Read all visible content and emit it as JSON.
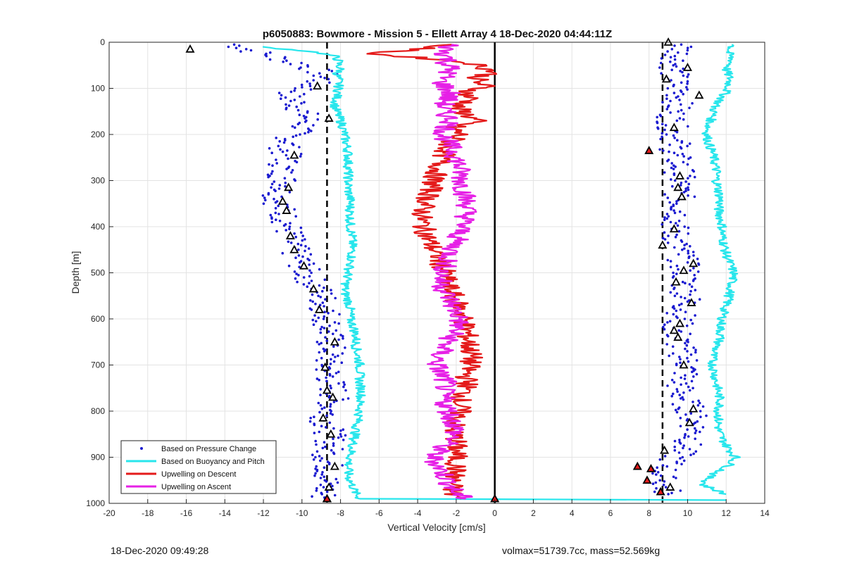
{
  "chart_data": {
    "type": "scatter",
    "title": "p6050883: Bowmore - Mission 5 - Ellett Array 4 18-Dec-2020 04:44:11Z",
    "xlabel": "Vertical Velocity [cm/s]",
    "ylabel": "Depth [m]",
    "xlim": [
      -20,
      14
    ],
    "ylim": [
      0,
      1000
    ],
    "y_reversed": true,
    "x_ticks": [
      -20,
      -18,
      -16,
      -14,
      -12,
      -10,
      -8,
      -6,
      -4,
      -2,
      0,
      2,
      4,
      6,
      8,
      10,
      12,
      14
    ],
    "y_ticks": [
      0,
      100,
      200,
      300,
      400,
      500,
      600,
      700,
      800,
      900,
      1000
    ],
    "grid": true,
    "legend_position": "bottom-left",
    "vertical_lines": [
      {
        "x": -8.7,
        "style": "dashed",
        "color": "#000000"
      },
      {
        "x": 8.7,
        "style": "dashed",
        "color": "#000000"
      },
      {
        "x": 0,
        "style": "solid",
        "color": "#000000"
      }
    ],
    "series": [
      {
        "name": "Based on Pressure Change",
        "kind": "points",
        "color": "#1a1ad0",
        "groups": [
          {
            "depth": [
              5,
              10,
              15,
              20,
              30,
              40,
              50,
              60,
              70,
              80,
              90,
              100,
              110,
              120,
              130,
              140,
              150,
              160,
              170,
              180,
              190,
              200,
              210,
              220,
              230,
              240,
              250,
              260,
              270,
              280,
              290,
              300,
              310,
              320,
              330,
              340,
              350,
              360,
              370,
              380,
              390,
              400,
              410,
              420,
              430,
              440,
              450,
              460,
              470,
              480,
              490,
              500,
              510,
              520,
              530,
              540,
              550,
              560,
              570,
              580,
              590,
              600,
              620,
              640,
              660,
              680,
              700,
              720,
              740,
              760,
              780,
              800,
              820,
              840,
              860,
              880,
              900,
              920,
              940,
              960,
              980,
              990
            ],
            "v": [
              -13.5,
              -13.2,
              -12.8,
              -12.5,
              -11.5,
              -10.8,
              -9.8,
              -9.3,
              -8.9,
              -8.9,
              -9.5,
              -9.8,
              -10.5,
              -10.8,
              -10.3,
              -10.2,
              -10.0,
              -9.8,
              -9.7,
              -9.8,
              -10.2,
              -10.5,
              -10.6,
              -10.8,
              -10.9,
              -10.9,
              -10.6,
              -10.9,
              -11.0,
              -11.1,
              -11.0,
              -10.9,
              -10.8,
              -11.0,
              -11.2,
              -11.3,
              -11.2,
              -11.1,
              -11.0,
              -10.9,
              -10.8,
              -10.7,
              -10.7,
              -10.6,
              -10.6,
              -10.5,
              -10.4,
              -10.3,
              -10.1,
              -10.0,
              -9.9,
              -9.8,
              -9.6,
              -9.5,
              -9.3,
              -9.1,
              -8.9,
              -8.9,
              -8.9,
              -8.8,
              -8.7,
              -8.7,
              -8.6,
              -8.6,
              -8.5,
              -8.6,
              -8.7,
              -8.6,
              -8.5,
              -8.3,
              -8.4,
              -8.6,
              -8.8,
              -8.6,
              -8.5,
              -8.6,
              -8.7,
              -8.6,
              -8.7,
              -8.8,
              -8.9,
              -8.8
            ]
          },
          {
            "depth": [
              5,
              20,
              40,
              60,
              80,
              100,
              120,
              140,
              160,
              180,
              200,
              220,
              240,
              260,
              280,
              300,
              320,
              340,
              360,
              380,
              400,
              420,
              440,
              460,
              480,
              500,
              520,
              540,
              560,
              580,
              600,
              620,
              640,
              660,
              680,
              700,
              720,
              740,
              760,
              780,
              800,
              820,
              840,
              860,
              880,
              900,
              920,
              940,
              960,
              980
            ],
            "v": [
              9.8,
              9.6,
              9.4,
              9.3,
              9.3,
              9.5,
              9.6,
              9.4,
              9.2,
              9.2,
              9.3,
              9.4,
              9.3,
              9.5,
              9.6,
              9.6,
              9.5,
              9.6,
              9.7,
              9.5,
              9.3,
              9.4,
              9.5,
              9.7,
              9.8,
              9.9,
              9.8,
              9.9,
              10.0,
              9.8,
              9.6,
              9.4,
              9.5,
              9.6,
              9.8,
              10.0,
              9.9,
              9.6,
              9.6,
              9.9,
              10.2,
              10.3,
              10.4,
              10.2,
              9.8,
              9.4,
              8.9,
              8.6,
              8.8,
              9.0
            ]
          }
        ]
      },
      {
        "name": "Based on Buoyancy and Pitch",
        "kind": "line",
        "color": "#28e6ec",
        "groups": [
          {
            "depth": [
              10,
              20,
              30,
              40,
              50,
              60,
              70,
              80,
              100,
              120,
              140,
              160,
              180,
              200,
              220,
              240,
              260,
              280,
              300,
              320,
              340,
              360,
              380,
              400,
              420,
              440,
              460,
              480,
              500,
              520,
              540,
              560,
              580,
              600,
              620,
              640,
              660,
              680,
              700,
              720,
              740,
              760,
              780,
              800,
              820,
              840,
              860,
              880,
              900,
              920,
              940,
              960,
              980,
              990
            ],
            "v": [
              -12.2,
              -9.5,
              -8.3,
              -8.1,
              -8.1,
              -8.0,
              -8.2,
              -8.1,
              -8.1,
              -8.2,
              -8.3,
              -8.1,
              -7.9,
              -7.8,
              -7.7,
              -7.6,
              -7.6,
              -7.6,
              -7.6,
              -7.6,
              -7.5,
              -7.5,
              -7.5,
              -7.5,
              -7.4,
              -7.4,
              -7.4,
              -7.5,
              -7.6,
              -7.7,
              -7.8,
              -7.6,
              -7.5,
              -7.5,
              -7.3,
              -7.2,
              -7.2,
              -7.1,
              -7.0,
              -7.0,
              -7.0,
              -6.9,
              -7.0,
              -7.0,
              -7.1,
              -7.2,
              -7.3,
              -7.4,
              -7.5,
              -7.6,
              -7.6,
              -7.4,
              -7.2,
              -7.0
            ]
          },
          {
            "depth": [
              990,
              991,
              993
            ],
            "v": [
              -7.0,
              0.0,
              12.0
            ]
          },
          {
            "depth": [
              5,
              20,
              40,
              60,
              80,
              100,
              120,
              140,
              160,
              180,
              200,
              220,
              240,
              260,
              280,
              300,
              320,
              340,
              360,
              380,
              400,
              420,
              440,
              460,
              480,
              500,
              520,
              540,
              560,
              580,
              600,
              620,
              640,
              660,
              680,
              700,
              720,
              740,
              760,
              780,
              800,
              820,
              840,
              860,
              880,
              900,
              920,
              940,
              960,
              980
            ],
            "v": [
              12.4,
              12.1,
              12.3,
              12.0,
              12.2,
              12.1,
              11.8,
              11.4,
              11.3,
              11.1,
              11.0,
              11.1,
              11.3,
              11.4,
              11.5,
              11.5,
              11.6,
              11.7,
              11.6,
              11.7,
              11.8,
              11.8,
              11.9,
              12.0,
              12.2,
              12.4,
              12.3,
              12.2,
              12.1,
              11.9,
              11.8,
              11.7,
              11.7,
              11.5,
              11.3,
              11.3,
              11.4,
              11.5,
              11.6,
              11.7,
              11.6,
              11.6,
              11.6,
              11.8,
              12.1,
              12.5,
              12.1,
              11.2,
              10.8,
              12.0
            ]
          }
        ]
      },
      {
        "name": "Upwelling on Descent",
        "kind": "line",
        "color": "#e41a1a",
        "groups": [
          {
            "depth": [
              5,
              15,
              25,
              35,
              45,
              55,
              65,
              75,
              85,
              95,
              110,
              125,
              140,
              155,
              170,
              185,
              200,
              220,
              240,
              260,
              280,
              300,
              320,
              340,
              360,
              380,
              400,
              420,
              440,
              460,
              480,
              500,
              520,
              540,
              560,
              580,
              600,
              620,
              640,
              660,
              680,
              700,
              720,
              740,
              760,
              780,
              800,
              820,
              840,
              860,
              880,
              900,
              920,
              940,
              960,
              980,
              990
            ],
            "v": [
              -2.5,
              -4.0,
              -6.5,
              -3.5,
              -1.2,
              -0.5,
              0.0,
              -0.8,
              -1.0,
              -0.5,
              -1.5,
              -1.2,
              -2.0,
              -1.5,
              -1.0,
              -2.2,
              -1.8,
              -2.4,
              -2.6,
              -2.8,
              -3.0,
              -3.2,
              -3.3,
              -3.5,
              -3.7,
              -3.8,
              -3.7,
              -3.5,
              -3.3,
              -3.0,
              -2.8,
              -2.6,
              -2.5,
              -2.3,
              -2.0,
              -1.8,
              -1.6,
              -1.5,
              -1.4,
              -1.3,
              -1.2,
              -1.3,
              -1.5,
              -1.4,
              -1.6,
              -1.8,
              -1.8,
              -2.0,
              -2.2,
              -2.0,
              -2.0,
              -2.0,
              -2.0,
              -2.1,
              -2.2,
              -2.2,
              -1.8
            ]
          }
        ]
      },
      {
        "name": "Upwelling on Ascent",
        "kind": "line",
        "color": "#e620e6",
        "groups": [
          {
            "depth": [
              5,
              15,
              25,
              35,
              45,
              55,
              65,
              75,
              85,
              95,
              110,
              125,
              140,
              155,
              170,
              185,
              200,
              220,
              240,
              260,
              280,
              300,
              320,
              340,
              360,
              380,
              400,
              420,
              440,
              460,
              480,
              500,
              520,
              540,
              560,
              580,
              600,
              620,
              640,
              660,
              680,
              700,
              720,
              740,
              760,
              780,
              800,
              820,
              840,
              860,
              880,
              900,
              920,
              940,
              960,
              980,
              990
            ],
            "v": [
              -2.3,
              -2.5,
              -2.6,
              -2.4,
              -2.5,
              -2.3,
              -2.4,
              -2.6,
              -2.8,
              -2.6,
              -2.3,
              -2.5,
              -2.7,
              -2.6,
              -2.2,
              -2.5,
              -2.7,
              -2.4,
              -2.1,
              -1.9,
              -1.8,
              -1.7,
              -1.6,
              -1.5,
              -1.4,
              -1.5,
              -1.7,
              -1.9,
              -2.1,
              -2.3,
              -2.5,
              -2.7,
              -2.8,
              -2.6,
              -2.3,
              -2.1,
              -1.8,
              -2.0,
              -2.3,
              -2.6,
              -2.9,
              -3.0,
              -2.8,
              -2.5,
              -2.7,
              -2.6,
              -2.4,
              -2.2,
              -2.0,
              -2.2,
              -2.8,
              -3.2,
              -2.9,
              -2.6,
              -2.3,
              -2.0,
              -1.5
            ]
          }
        ]
      }
    ],
    "triangle_markers_black": [
      {
        "v": -15.8,
        "depth": 15
      },
      {
        "v": -9.2,
        "depth": 95
      },
      {
        "v": -8.6,
        "depth": 165
      },
      {
        "v": -10.4,
        "depth": 245
      },
      {
        "v": -10.7,
        "depth": 315
      },
      {
        "v": -11.0,
        "depth": 345
      },
      {
        "v": -10.8,
        "depth": 365
      },
      {
        "v": -10.6,
        "depth": 420
      },
      {
        "v": -10.4,
        "depth": 450
      },
      {
        "v": -9.9,
        "depth": 485
      },
      {
        "v": -9.4,
        "depth": 535
      },
      {
        "v": -9.1,
        "depth": 580
      },
      {
        "v": -8.3,
        "depth": 650
      },
      {
        "v": -8.8,
        "depth": 705
      },
      {
        "v": -8.7,
        "depth": 755
      },
      {
        "v": -8.4,
        "depth": 770
      },
      {
        "v": -8.9,
        "depth": 815
      },
      {
        "v": -8.5,
        "depth": 850
      },
      {
        "v": -8.3,
        "depth": 920
      },
      {
        "v": -8.6,
        "depth": 965
      },
      {
        "v": -8.7,
        "depth": 990
      },
      {
        "v": 9.0,
        "depth": 0
      },
      {
        "v": 10.0,
        "depth": 55
      },
      {
        "v": 8.9,
        "depth": 80
      },
      {
        "v": 10.6,
        "depth": 115
      },
      {
        "v": 9.3,
        "depth": 185
      },
      {
        "v": 9.6,
        "depth": 290
      },
      {
        "v": 9.5,
        "depth": 315
      },
      {
        "v": 9.7,
        "depth": 335
      },
      {
        "v": 9.3,
        "depth": 405
      },
      {
        "v": 8.7,
        "depth": 440
      },
      {
        "v": 10.3,
        "depth": 480
      },
      {
        "v": 9.8,
        "depth": 495
      },
      {
        "v": 9.4,
        "depth": 520
      },
      {
        "v": 10.2,
        "depth": 565
      },
      {
        "v": 9.6,
        "depth": 610
      },
      {
        "v": 9.3,
        "depth": 625
      },
      {
        "v": 9.5,
        "depth": 640
      },
      {
        "v": 9.8,
        "depth": 700
      },
      {
        "v": 10.3,
        "depth": 795
      },
      {
        "v": 10.1,
        "depth": 825
      },
      {
        "v": 8.8,
        "depth": 885
      },
      {
        "v": 9.1,
        "depth": 965
      }
    ],
    "triangle_markers_red": [
      {
        "v": 8.0,
        "depth": 235
      },
      {
        "v": 7.4,
        "depth": 920
      },
      {
        "v": 8.1,
        "depth": 925
      },
      {
        "v": 7.9,
        "depth": 950
      },
      {
        "v": 8.6,
        "depth": 975
      },
      {
        "v": 0.0,
        "depth": 990
      },
      {
        "v": -8.7,
        "depth": 990
      }
    ]
  },
  "footer": {
    "timestamp": "18-Dec-2020 09:49:28",
    "params": "volmax=51739.7cc, mass=52.569kg"
  }
}
